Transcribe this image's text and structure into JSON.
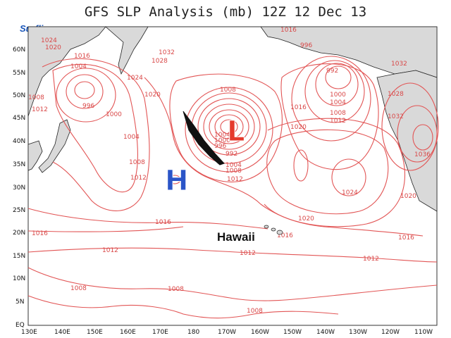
{
  "title": "GFS SLP Analysis (mb) 12Z 12 Dec 13",
  "brand": "Surfline.com",
  "lat_labels": [
    "60N",
    "55N",
    "50N",
    "45N",
    "40N",
    "35N",
    "30N",
    "25N",
    "20N",
    "15N",
    "10N",
    "5N",
    "EQ"
  ],
  "lon_labels": [
    "130E",
    "140E",
    "150E",
    "160E",
    "170E",
    "180",
    "170W",
    "160W",
    "150W",
    "140W",
    "130W",
    "120W",
    "110W"
  ],
  "pressure_centers": {
    "high": "H",
    "low": "L"
  },
  "place_label": "Hawaii",
  "isobar_labels": {
    "l1008a": "1008",
    "l1004a": "1004",
    "l1000a": "1000",
    "l996a": "996",
    "l992a": "992",
    "l1008b": "1008",
    "l1012a": "1012",
    "l1024a": "1024",
    "l1020a": "1020",
    "l1016a": "1016",
    "l1032a": "1032",
    "l1028a": "1028",
    "l1024b": "1024",
    "l1004b": "1004",
    "l996b": "996",
    "l1000b": "1000",
    "l1008c": "1008",
    "l1012b": "1012",
    "l1012c": "1012",
    "l1020b": "1020",
    "l1004c": "1004",
    "l1008d": "1008",
    "l1016b": "1016",
    "l1016c": "1016",
    "l1016d": "1016",
    "l1012d": "1012",
    "l1012e": "1012",
    "l1012f": "1012",
    "l1008e": "1008",
    "l1008f": "1008",
    "l1008g": "1008",
    "l1024c": "1024",
    "l1020c": "1020",
    "l1020d": "1020",
    "l1016e": "1016",
    "l1016f": "1016",
    "l992b": "992",
    "l1000c": "1000",
    "l1004d": "1004",
    "l1008h": "1008",
    "l1012g": "1012",
    "l1016g": "1016",
    "l1020e": "1020",
    "l1032b": "1032",
    "l1028b": "1028",
    "l1032c": "1032",
    "l1036": "1036",
    "l1020f": "1020",
    "l1016h": "1016",
    "l996c": "996",
    "l1012h": "1012",
    "l1004e": "1004",
    "l1016i": "1016",
    "l1020g": "1020"
  }
}
